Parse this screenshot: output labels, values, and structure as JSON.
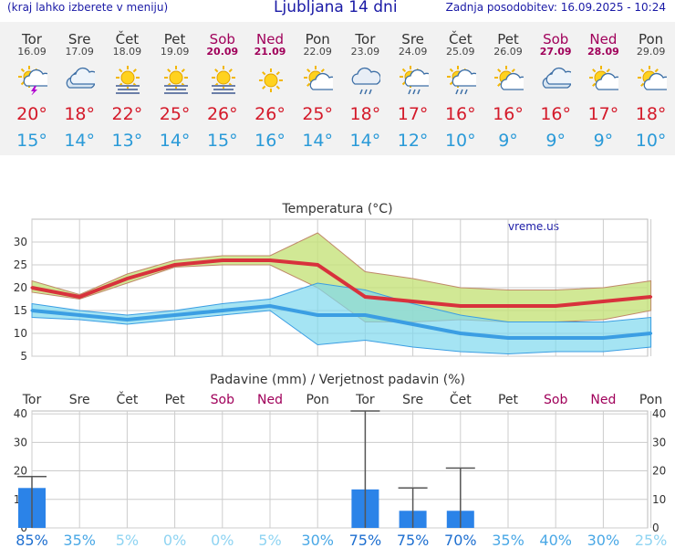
{
  "header": {
    "menu_note": "(kraj lahko izberete v meniju)",
    "title": "Ljubljana 14 dni",
    "updated": "Zadnja posodobitev: 16.09.2025 - 10:24"
  },
  "days": [
    {
      "name": "Tor",
      "date": "16.09",
      "weekend": false,
      "icon": "sun-cloud-lightning-icon",
      "max": "20°",
      "min": "15°"
    },
    {
      "name": "Sre",
      "date": "17.09",
      "weekend": false,
      "icon": "cloudy-icon",
      "max": "18°",
      "min": "14°"
    },
    {
      "name": "Čet",
      "date": "18.09",
      "weekend": false,
      "icon": "sun-fog-icon",
      "max": "22°",
      "min": "13°"
    },
    {
      "name": "Pet",
      "date": "19.09",
      "weekend": false,
      "icon": "sun-fog-icon",
      "max": "25°",
      "min": "14°"
    },
    {
      "name": "Sob",
      "date": "20.09",
      "weekend": true,
      "icon": "sun-fog-icon",
      "max": "26°",
      "min": "15°"
    },
    {
      "name": "Ned",
      "date": "21.09",
      "weekend": true,
      "icon": "sun-icon",
      "max": "26°",
      "min": "16°"
    },
    {
      "name": "Pon",
      "date": "22.09",
      "weekend": false,
      "icon": "sun-small-cloud-icon",
      "max": "25°",
      "min": "14°"
    },
    {
      "name": "Tor",
      "date": "23.09",
      "weekend": false,
      "icon": "rain-cloud-icon",
      "max": "18°",
      "min": "14°"
    },
    {
      "name": "Sre",
      "date": "24.09",
      "weekend": false,
      "icon": "sun-rain-icon",
      "max": "17°",
      "min": "12°"
    },
    {
      "name": "Čet",
      "date": "25.09",
      "weekend": false,
      "icon": "sun-rain-icon",
      "max": "16°",
      "min": "10°"
    },
    {
      "name": "Pet",
      "date": "26.09",
      "weekend": false,
      "icon": "sun-small-cloud-icon",
      "max": "16°",
      "min": "9°"
    },
    {
      "name": "Sob",
      "date": "27.09",
      "weekend": true,
      "icon": "cloudy-icon",
      "max": "16°",
      "min": "9°"
    },
    {
      "name": "Ned",
      "date": "28.09",
      "weekend": true,
      "icon": "sun-small-cloud-icon",
      "max": "17°",
      "min": "9°"
    },
    {
      "name": "Pon",
      "date": "29.09",
      "weekend": false,
      "icon": "sun-small-cloud-icon",
      "max": "18°",
      "min": "10°"
    }
  ],
  "colors": {
    "max_line": "#d8323c",
    "min_line": "#3b9ee3",
    "max_band": "#c6e27a",
    "min_band": "#7fd8ee",
    "overlap": "#52c08a",
    "bar": "#2b83e8",
    "weekend": "#a0005a",
    "grid": "#cccccc"
  },
  "chart_data": [
    {
      "type": "line",
      "title": "Temperatura (°C)",
      "watermark": "vreme.us",
      "categories": [
        "16.09",
        "17.09",
        "18.09",
        "19.09",
        "20.09",
        "21.09",
        "22.09",
        "23.09",
        "24.09",
        "25.09",
        "26.09",
        "27.09",
        "28.09",
        "29.09"
      ],
      "series": [
        {
          "name": "max",
          "values": [
            20,
            18,
            22,
            25,
            26,
            26,
            25,
            18,
            17,
            16,
            16,
            16,
            17,
            18
          ],
          "band_high": [
            21.5,
            18.5,
            23,
            26,
            27,
            27,
            32,
            23.5,
            22,
            20,
            19.5,
            19.5,
            20,
            21.5
          ],
          "band_low": [
            19,
            17.5,
            21,
            24.5,
            25,
            25,
            20,
            12.5,
            12.5,
            13,
            12.5,
            12.5,
            13,
            15
          ]
        },
        {
          "name": "min",
          "values": [
            15,
            14,
            13,
            14,
            15,
            16,
            14,
            14,
            12,
            10,
            9,
            9,
            9,
            10
          ],
          "band_high": [
            16.5,
            15,
            14,
            15,
            16.5,
            17.5,
            21,
            19.5,
            16.5,
            14,
            12.5,
            12.5,
            12.5,
            13.5
          ],
          "band_low": [
            13.5,
            13,
            12,
            13,
            14,
            15,
            7.5,
            8.5,
            7,
            6,
            5.5,
            6,
            6,
            7
          ]
        }
      ],
      "ylim": [
        5,
        35
      ],
      "yticks": [
        5,
        10,
        15,
        20,
        25,
        30
      ],
      "grid": true
    },
    {
      "type": "bar",
      "title": "Padavine (mm) / Verjetnost padavin (%)",
      "categories": [
        "Tor",
        "Sre",
        "Čet",
        "Pet",
        "Sob",
        "Ned",
        "Pon",
        "Tor",
        "Sre",
        "Čet",
        "Pet",
        "Sob",
        "Ned",
        "Pon"
      ],
      "values": [
        14,
        0,
        0,
        0,
        0,
        0,
        0,
        13.5,
        6,
        6,
        0,
        0,
        0,
        0
      ],
      "error_high": [
        18,
        0,
        0,
        0,
        0,
        0,
        0,
        41,
        14,
        21,
        0,
        0,
        0,
        0
      ],
      "probability": [
        "85%",
        "35%",
        "5%",
        "0%",
        "0%",
        "5%",
        "30%",
        "75%",
        "75%",
        "70%",
        "35%",
        "40%",
        "30%",
        "25%"
      ],
      "ylim": [
        0,
        41
      ],
      "yticks": [
        0,
        10,
        20,
        30,
        40
      ],
      "grid": true
    }
  ]
}
